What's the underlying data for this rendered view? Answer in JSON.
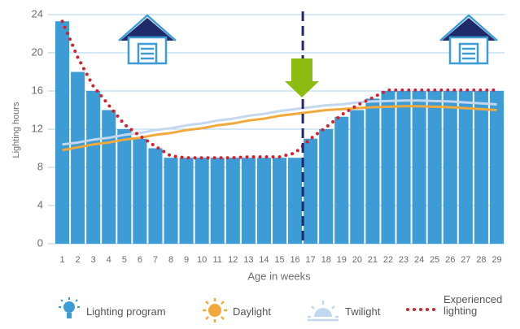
{
  "chart_data": {
    "type": "bar",
    "y_label": "Lighting hours",
    "x_label": "Age in weeks",
    "categories": [
      1,
      2,
      3,
      4,
      5,
      6,
      7,
      8,
      9,
      10,
      11,
      12,
      13,
      14,
      15,
      16,
      17,
      18,
      19,
      20,
      21,
      22,
      23,
      24,
      25,
      26,
      27,
      28,
      29
    ],
    "ylim": [
      0,
      24
    ],
    "yticks": [
      0,
      4,
      8,
      12,
      16,
      20,
      24
    ],
    "grid": true,
    "series": [
      {
        "name": "Lighting program",
        "type": "bar",
        "color": "#3d9bd6",
        "values": [
          23.3,
          18,
          16,
          14,
          12,
          11,
          10,
          9,
          9,
          9,
          9,
          9,
          9,
          9,
          9,
          9,
          11,
          12,
          13.3,
          14,
          15.2,
          16,
          16,
          16,
          16,
          16,
          16,
          16,
          16
        ]
      },
      {
        "name": "Daylight",
        "type": "line",
        "color": "#f2a93b",
        "values": [
          9.8,
          10.1,
          10.4,
          10.6,
          10.9,
          11.1,
          11.4,
          11.6,
          11.9,
          12.1,
          12.4,
          12.6,
          12.9,
          13.1,
          13.4,
          13.6,
          13.8,
          14,
          14.1,
          14.2,
          14.3,
          14.35,
          14.4,
          14.4,
          14.35,
          14.3,
          14.2,
          14.1,
          14
        ]
      },
      {
        "name": "Twilight",
        "type": "line",
        "color": "#c3d8ee",
        "values": [
          10.4,
          10.6,
          10.9,
          11.1,
          11.4,
          11.6,
          11.9,
          12.1,
          12.4,
          12.6,
          12.9,
          13.1,
          13.4,
          13.6,
          13.9,
          14.1,
          14.3,
          14.5,
          14.6,
          14.8,
          14.9,
          14.95,
          15,
          15,
          14.95,
          14.9,
          14.8,
          14.7,
          14.6
        ]
      },
      {
        "name": "Experienced lighting",
        "type": "dots",
        "color": "#d3202e",
        "values": [
          23.3,
          19.5,
          16.5,
          14.5,
          12.5,
          11.3,
          10.2,
          9.2,
          9,
          9,
          9,
          9,
          9.1,
          9.1,
          9.1,
          9.5,
          11,
          12.2,
          13.5,
          14.5,
          15.3,
          16.1,
          16.1,
          16.1,
          16.1,
          16.1,
          16.1,
          16.1,
          16.1
        ]
      }
    ]
  }
}
